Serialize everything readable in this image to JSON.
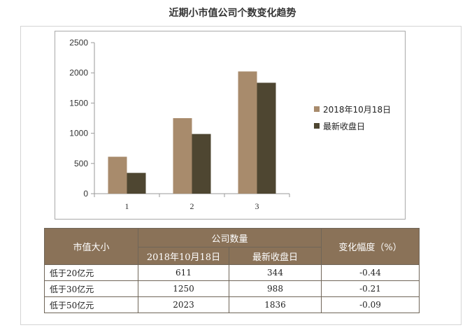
{
  "title": "近期小市值公司个数变化趋势",
  "colors": {
    "series_a": "#a88b6c",
    "series_b": "#4e4631",
    "header_bg": "#8a7258"
  },
  "chart_data": {
    "type": "bar",
    "categories": [
      "1",
      "2",
      "3"
    ],
    "series": [
      {
        "name": "2018年10月18日",
        "values": [
          611,
          1250,
          2023
        ]
      },
      {
        "name": "最新收盘日",
        "values": [
          344,
          988,
          1836
        ]
      }
    ],
    "ylim": [
      0,
      2500
    ],
    "yticks": [
      0,
      500,
      1000,
      1500,
      2000,
      2500
    ],
    "grid": false,
    "legend": "right"
  },
  "table": {
    "header_size": "市值大小",
    "header_count": "公司数量",
    "header_date1": "2018年10月18日",
    "header_date2": "最新收盘日",
    "header_change": "变化幅度（%）",
    "rows": [
      {
        "label": "低于20亿元",
        "a": "611",
        "b": "344",
        "change": "-0.44"
      },
      {
        "label": "低于30亿元",
        "a": "1250",
        "b": "988",
        "change": "-0.21"
      },
      {
        "label": "低于50亿元",
        "a": "2023",
        "b": "1836",
        "change": "-0.09"
      }
    ]
  }
}
